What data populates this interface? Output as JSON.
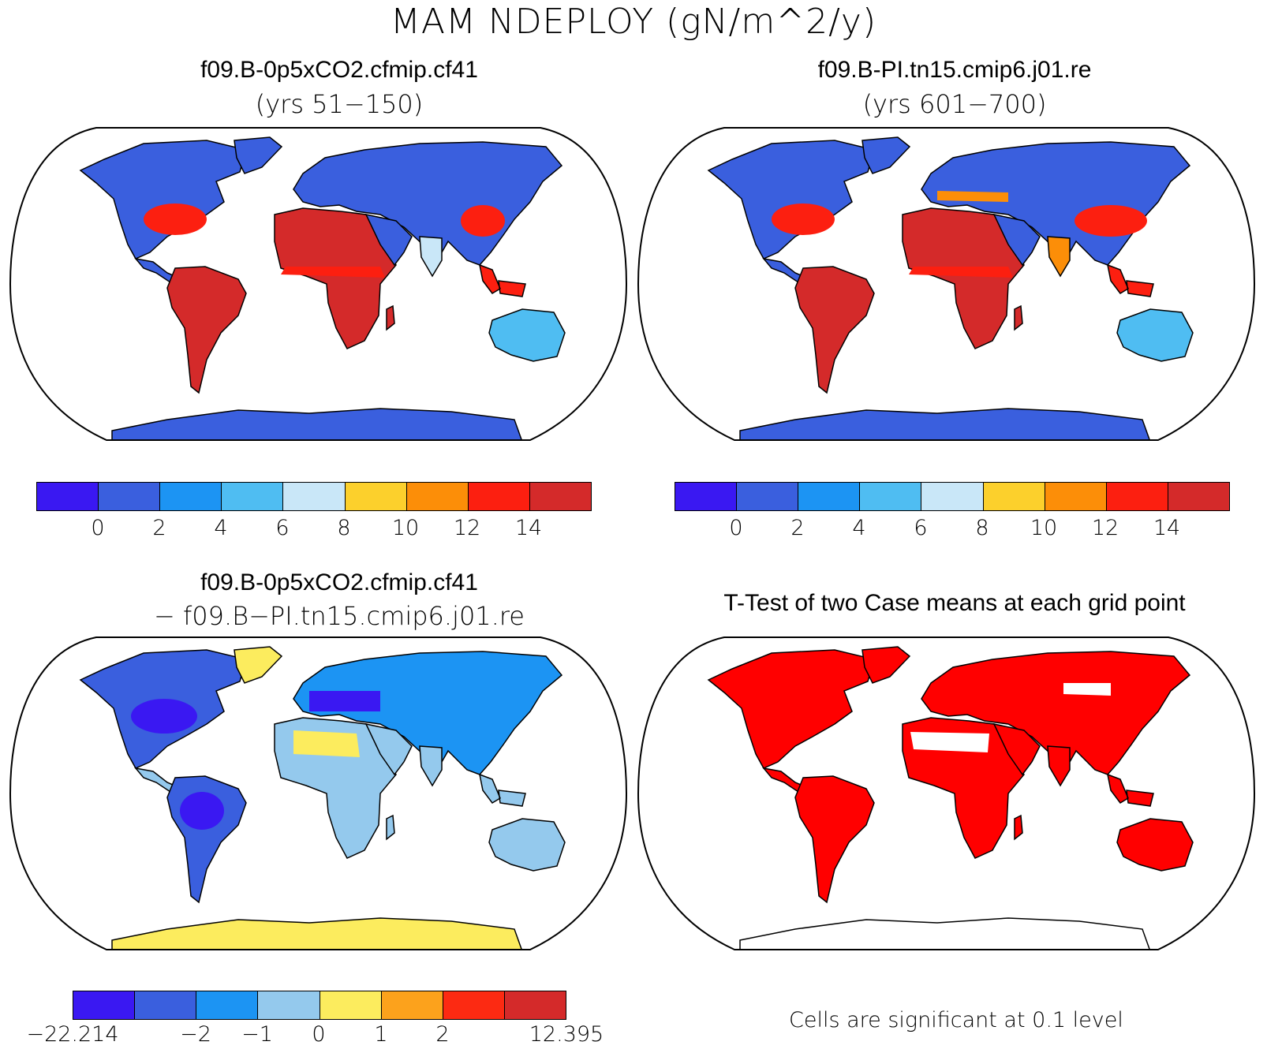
{
  "main_title": "MAM NDEPLOY (gN/m^2/y)",
  "colors": {
    "abs_scale": [
      "#3a18f2",
      "#3a5fde",
      "#1c94f3",
      "#4fbdf2",
      "#c9e7f8",
      "#fcd02c",
      "#fc8e08",
      "#fc1f10",
      "#d42a2a"
    ],
    "diff_scale": [
      "#3a18f2",
      "#3a5fde",
      "#1c94f3",
      "#94c9ed",
      "#fcec5e",
      "#fca21c",
      "#fc2a12",
      "#d42a2a"
    ],
    "significant": "#ff0000",
    "ocean": "#ffffff"
  },
  "panels": {
    "top_left": {
      "title": "f09.B-0p5xCO2.cfmip.cf41",
      "subtitle": "(yrs 51−150)",
      "colorbar_ticks": [
        "0",
        "2",
        "4",
        "6",
        "8",
        "10",
        "12",
        "14"
      ]
    },
    "top_right": {
      "title": "f09.B-PI.tn15.cmip6.j01.re",
      "subtitle": "(yrs 601−700)",
      "colorbar_ticks": [
        "0",
        "2",
        "4",
        "6",
        "8",
        "10",
        "12",
        "14"
      ]
    },
    "bottom_left": {
      "title": "f09.B-0p5xCO2.cfmip.cf41",
      "subtitle": "− f09.B−PI.tn15.cmip6.j01.re",
      "colorbar_ticks": [
        "−22.214",
        "−2",
        "−1",
        "0",
        "1",
        "2",
        "12.395"
      ]
    },
    "bottom_right": {
      "title": "T-Test of two Case means at each grid point",
      "note": "Cells are significant at 0.1 level"
    }
  }
}
